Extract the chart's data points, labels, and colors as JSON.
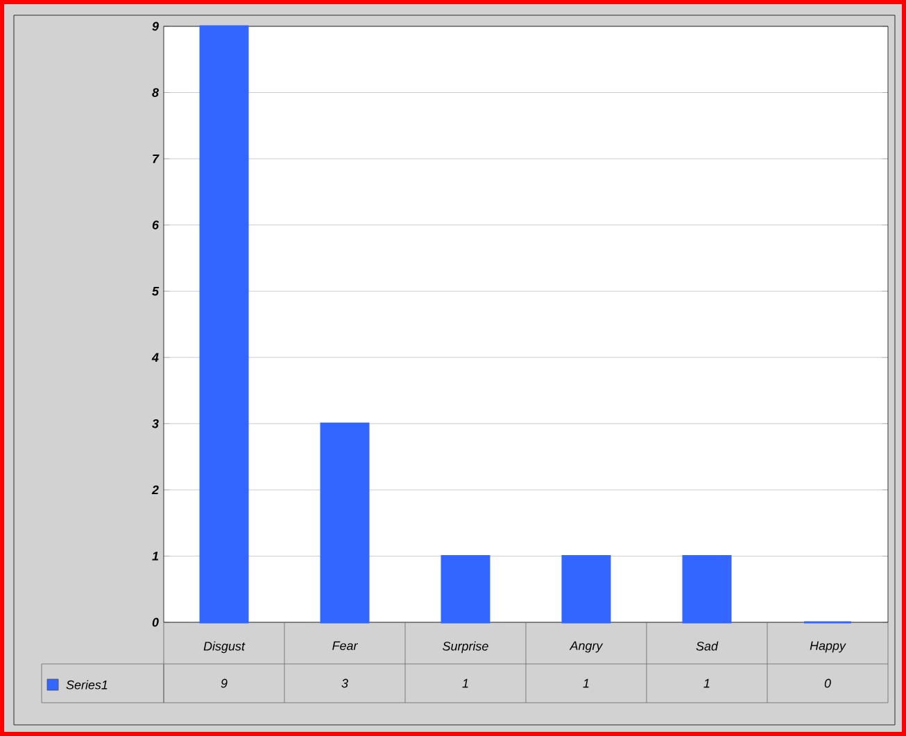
{
  "chart_data": {
    "type": "bar",
    "categories": [
      "Disgust",
      "Fear",
      "Surprise",
      "Angry",
      "Sad",
      "Happy"
    ],
    "series": [
      {
        "name": "Series1",
        "color": "#3366ff",
        "values": [
          9,
          3,
          1,
          1,
          1,
          0
        ]
      }
    ],
    "ylim": [
      0,
      9
    ],
    "yticks": [
      0,
      1,
      2,
      3,
      4,
      5,
      6,
      7,
      8,
      9
    ],
    "grid": "y",
    "legend": "bottom",
    "data_labels": true
  }
}
